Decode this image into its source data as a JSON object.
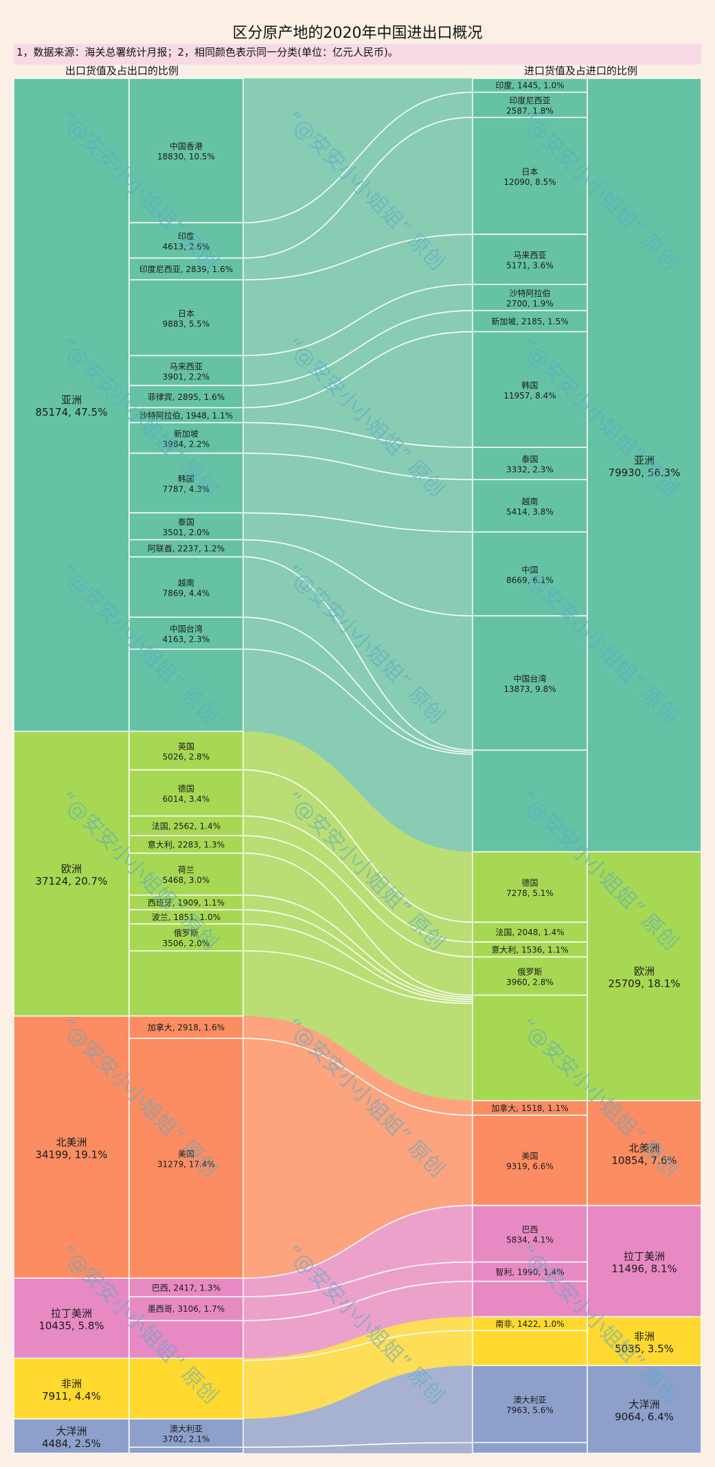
{
  "title": "区分原产地的2020年中国进出口概况",
  "subtitle": "1，数据来源：海关总署统计月报；2，相同颜色表示同一分类(单位：亿元人民币)。",
  "left_header": "出口货值及占出口的比例",
  "right_header": "进口货值及占进口的比例",
  "watermark": "“@安安小小姐姐” 原创",
  "colors": {
    "asia": "#66c2a5",
    "europe": "#a6d854",
    "north_america": "#fc8d62",
    "latin_america": "#e78ac3",
    "africa": "#ffd92f",
    "oceania": "#8da0cb"
  },
  "chart_data": {
    "type": "sankey",
    "export_continents": [
      {
        "key": "asia",
        "label1": "亚洲",
        "label2": "85174, 47.5%",
        "value": 85174
      },
      {
        "key": "europe",
        "label1": "欧洲",
        "label2": "37124, 20.7%",
        "value": 37124
      },
      {
        "key": "north_america",
        "label1": "北美洲",
        "label2": "34199, 19.1%",
        "value": 34199
      },
      {
        "key": "latin_america",
        "label1": "拉丁美洲",
        "label2": "10435, 5.8%",
        "value": 10435
      },
      {
        "key": "africa",
        "label1": "非洲",
        "label2": "7911, 4.4%",
        "value": 7911
      },
      {
        "key": "oceania",
        "label1": "大洋洲",
        "label2": "4484, 2.5%",
        "value": 4484
      }
    ],
    "import_continents": [
      {
        "key": "asia",
        "label1": "亚洲",
        "label2": "79930, 56.3%",
        "value": 79930
      },
      {
        "key": "europe",
        "label1": "欧洲",
        "label2": "25709, 18.1%",
        "value": 25709
      },
      {
        "key": "north_america",
        "label1": "北美洲",
        "label2": "10854, 7.6%",
        "value": 10854
      },
      {
        "key": "latin_america",
        "label1": "拉丁美洲",
        "label2": "11496, 8.1%",
        "value": 11496
      },
      {
        "key": "africa",
        "label1": "非洲",
        "label2": "5035, 3.5%",
        "value": 5035
      },
      {
        "key": "oceania",
        "label1": "大洋洲",
        "label2": "9064, 6.4%",
        "value": 9064
      }
    ],
    "export_countries": [
      {
        "continent": "asia",
        "label1": "中国香港",
        "label2": "18830, 10.5%",
        "value": 18830
      },
      {
        "continent": "asia",
        "label1": "印度",
        "label2": "4613, 2.6%",
        "value": 4613
      },
      {
        "continent": "asia",
        "label1": "印度尼西亚, 2839, 1.6%",
        "label2": "",
        "value": 2839
      },
      {
        "continent": "asia",
        "label1": "日本",
        "label2": "9883, 5.5%",
        "value": 9883
      },
      {
        "continent": "asia",
        "label1": "马来西亚",
        "label2": "3901, 2.2%",
        "value": 3901
      },
      {
        "continent": "asia",
        "label1": "菲律宾, 2895, 1.6%",
        "label2": "",
        "value": 2895
      },
      {
        "continent": "asia",
        "label1": "沙特阿拉伯, 1948, 1.1%",
        "label2": "",
        "value": 1948
      },
      {
        "continent": "asia",
        "label1": "新加坡",
        "label2": "3984, 2.2%",
        "value": 3984
      },
      {
        "continent": "asia",
        "label1": "韩国",
        "label2": "7787, 4.3%",
        "value": 7787
      },
      {
        "continent": "asia",
        "label1": "泰国",
        "label2": "3501, 2.0%",
        "value": 3501
      },
      {
        "continent": "asia",
        "label1": "阿联酋, 2237, 1.2%",
        "label2": "",
        "value": 2237
      },
      {
        "continent": "asia",
        "label1": "越南",
        "label2": "7869, 4.4%",
        "value": 7869
      },
      {
        "continent": "asia",
        "label1": "中国台湾",
        "label2": "4163, 2.3%",
        "value": 4163
      },
      {
        "continent": "europe",
        "label1": "英国",
        "label2": "5026, 2.8%",
        "value": 5026
      },
      {
        "continent": "europe",
        "label1": "德国",
        "label2": "6014, 3.4%",
        "value": 6014
      },
      {
        "continent": "europe",
        "label1": "法国, 2562, 1.4%",
        "label2": "",
        "value": 2562
      },
      {
        "continent": "europe",
        "label1": "意大利, 2283, 1.3%",
        "label2": "",
        "value": 2283
      },
      {
        "continent": "europe",
        "label1": "荷兰",
        "label2": "5468, 3.0%",
        "value": 5468
      },
      {
        "continent": "europe",
        "label1": "西班牙, 1909, 1.1%",
        "label2": "",
        "value": 1909
      },
      {
        "continent": "europe",
        "label1": "波兰, 1851, 1.0%",
        "label2": "",
        "value": 1851
      },
      {
        "continent": "europe",
        "label1": "俄罗斯",
        "label2": "3506, 2.0%",
        "value": 3506
      },
      {
        "continent": "north_america",
        "label1": "加拿大, 2918, 1.6%",
        "label2": "",
        "value": 2918
      },
      {
        "continent": "north_america",
        "label1": "美国",
        "label2": "31279, 17.4%",
        "value": 31279
      },
      {
        "continent": "latin_america",
        "label1": "巴西, 2417, 1.3%",
        "label2": "",
        "value": 2417
      },
      {
        "continent": "latin_america",
        "label1": "墨西哥, 3106, 1.7%",
        "label2": "",
        "value": 3106
      },
      {
        "continent": "oceania",
        "label1": "澳大利亚",
        "label2": "3702, 2.1%",
        "value": 3702
      }
    ],
    "import_countries": [
      {
        "continent": "asia",
        "label1": "印度, 1445, 1.0%",
        "label2": "",
        "value": 1445
      },
      {
        "continent": "asia",
        "label1": "印度尼西亚",
        "label2": "2587, 1.8%",
        "value": 2587
      },
      {
        "continent": "asia",
        "label1": "日本",
        "label2": "12090, 8.5%",
        "value": 12090
      },
      {
        "continent": "asia",
        "label1": "马来西亚",
        "label2": "5171, 3.6%",
        "value": 5171
      },
      {
        "continent": "asia",
        "label1": "沙特阿拉伯",
        "label2": "2700, 1.9%",
        "value": 2700
      },
      {
        "continent": "asia",
        "label1": "新加坡, 2185, 1.5%",
        "label2": "",
        "value": 2185
      },
      {
        "continent": "asia",
        "label1": "韩国",
        "label2": "11957, 8.4%",
        "value": 11957
      },
      {
        "continent": "asia",
        "label1": "泰国",
        "label2": "3332, 2.3%",
        "value": 3332
      },
      {
        "continent": "asia",
        "label1": "越南",
        "label2": "5414, 3.8%",
        "value": 5414
      },
      {
        "continent": "asia",
        "label1": "中国",
        "label2": "8669, 6.1%",
        "value": 8669
      },
      {
        "continent": "asia",
        "label1": "中国台湾",
        "label2": "13873, 9.8%",
        "value": 13873
      },
      {
        "continent": "europe",
        "label1": "德国",
        "label2": "7278, 5.1%",
        "value": 7278
      },
      {
        "continent": "europe",
        "label1": "法国, 2048, 1.4%",
        "label2": "",
        "value": 2048
      },
      {
        "continent": "europe",
        "label1": "意大利, 1536, 1.1%",
        "label2": "",
        "value": 1536
      },
      {
        "continent": "europe",
        "label1": "俄罗斯",
        "label2": "3960, 2.8%",
        "value": 3960
      },
      {
        "continent": "north_america",
        "label1": "加拿大, 1518, 1.1%",
        "label2": "",
        "value": 1518
      },
      {
        "continent": "north_america",
        "label1": "美国",
        "label2": "9319, 6.6%",
        "value": 9319
      },
      {
        "continent": "latin_america",
        "label1": "巴西",
        "label2": "5834, 4.1%",
        "value": 5834
      },
      {
        "continent": "latin_america",
        "label1": "智利, 1990, 1.4%",
        "label2": "",
        "value": 1990
      },
      {
        "continent": "africa",
        "label1": "南非, 1422, 1.0%",
        "label2": "",
        "value": 1422
      },
      {
        "continent": "oceania",
        "label1": "澳大利亚",
        "label2": "7963, 5.6%",
        "value": 7963
      }
    ]
  }
}
